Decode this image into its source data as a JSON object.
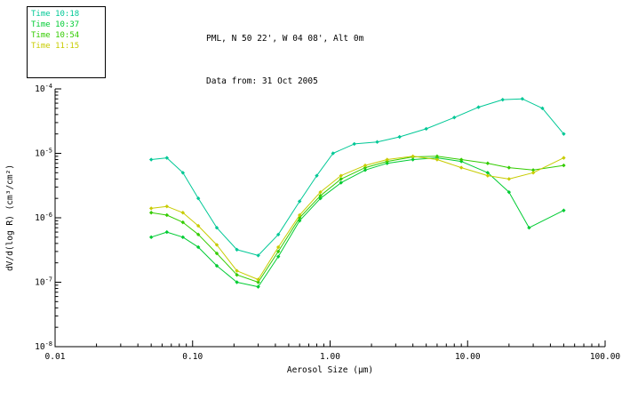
{
  "header": {
    "location_line": "PML, N 50 22', W 04 08', Alt 0m",
    "date_line": "Data from: 31 Oct 2005"
  },
  "legend": {
    "items": [
      {
        "label": "Time 10:18",
        "color": "#00C896"
      },
      {
        "label": "Time 10:37",
        "color": "#00CC33"
      },
      {
        "label": "Time 10:54",
        "color": "#33CC00"
      },
      {
        "label": "Time 11:15",
        "color": "#C8CC00"
      }
    ]
  },
  "chart_data": {
    "type": "line",
    "title": "",
    "x_axis": {
      "label": "Aerosol Size (μm)",
      "scale": "log",
      "range": [
        0.01,
        100
      ],
      "tick_values": [
        0.01,
        0.1,
        1,
        10,
        100
      ],
      "tick_labels": [
        "0.01",
        "0.10",
        "1.00",
        "10.00",
        "100.00"
      ]
    },
    "y_axis": {
      "label": "dV/d(log R) (cm³/cm²)",
      "scale": "log",
      "range": [
        1e-08,
        0.0001
      ],
      "tick_exponents": [
        -8,
        -7,
        -6,
        -5,
        -4
      ]
    },
    "grid": false,
    "legend_position": "top-left",
    "series": [
      {
        "name": "Time 10:18",
        "color": "#00C896",
        "points": [
          [
            0.05,
            8e-06
          ],
          [
            0.065,
            8.5e-06
          ],
          [
            0.085,
            5e-06
          ],
          [
            0.11,
            2e-06
          ],
          [
            0.15,
            7e-07
          ],
          [
            0.21,
            3.2e-07
          ],
          [
            0.3,
            2.6e-07
          ],
          [
            0.42,
            5.5e-07
          ],
          [
            0.6,
            1.8e-06
          ],
          [
            0.8,
            4.5e-06
          ],
          [
            1.05,
            1e-05
          ],
          [
            1.5,
            1.4e-05
          ],
          [
            2.2,
            1.5e-05
          ],
          [
            3.2,
            1.8e-05
          ],
          [
            5.0,
            2.4e-05
          ],
          [
            8.0,
            3.6e-05
          ],
          [
            12,
            5.2e-05
          ],
          [
            18,
            6.8e-05
          ],
          [
            25,
            7e-05
          ],
          [
            35,
            5e-05
          ],
          [
            50,
            2e-05
          ]
        ]
      },
      {
        "name": "Time 10:37",
        "color": "#00CC33",
        "points": [
          [
            0.05,
            5e-07
          ],
          [
            0.065,
            6e-07
          ],
          [
            0.085,
            5e-07
          ],
          [
            0.11,
            3.5e-07
          ],
          [
            0.15,
            1.8e-07
          ],
          [
            0.21,
            1e-07
          ],
          [
            0.3,
            8.5e-08
          ],
          [
            0.42,
            2.5e-07
          ],
          [
            0.6,
            9e-07
          ],
          [
            0.85,
            2e-06
          ],
          [
            1.2,
            3.5e-06
          ],
          [
            1.8,
            5.5e-06
          ],
          [
            2.6,
            7e-06
          ],
          [
            4.0,
            8e-06
          ],
          [
            6.0,
            8.5e-06
          ],
          [
            9.0,
            7.5e-06
          ],
          [
            14,
            5e-06
          ],
          [
            20,
            2.5e-06
          ],
          [
            28,
            7e-07
          ],
          [
            50,
            1.3e-06
          ]
        ]
      },
      {
        "name": "Time 10:54",
        "color": "#33CC00",
        "points": [
          [
            0.05,
            1.2e-06
          ],
          [
            0.065,
            1.1e-06
          ],
          [
            0.085,
            8.5e-07
          ],
          [
            0.11,
            5.5e-07
          ],
          [
            0.15,
            2.8e-07
          ],
          [
            0.21,
            1.3e-07
          ],
          [
            0.3,
            1e-07
          ],
          [
            0.42,
            3e-07
          ],
          [
            0.6,
            1e-06
          ],
          [
            0.85,
            2.2e-06
          ],
          [
            1.2,
            4e-06
          ],
          [
            1.8,
            6e-06
          ],
          [
            2.6,
            7.5e-06
          ],
          [
            4.0,
            8.8e-06
          ],
          [
            6.0,
            9e-06
          ],
          [
            9.0,
            8e-06
          ],
          [
            14,
            7e-06
          ],
          [
            20,
            6e-06
          ],
          [
            30,
            5.5e-06
          ],
          [
            50,
            6.5e-06
          ]
        ]
      },
      {
        "name": "Time 11:15",
        "color": "#C8CC00",
        "points": [
          [
            0.05,
            1.4e-06
          ],
          [
            0.065,
            1.5e-06
          ],
          [
            0.085,
            1.2e-06
          ],
          [
            0.11,
            7.5e-07
          ],
          [
            0.15,
            3.8e-07
          ],
          [
            0.21,
            1.5e-07
          ],
          [
            0.3,
            1.1e-07
          ],
          [
            0.42,
            3.5e-07
          ],
          [
            0.6,
            1.1e-06
          ],
          [
            0.85,
            2.5e-06
          ],
          [
            1.2,
            4.5e-06
          ],
          [
            1.8,
            6.5e-06
          ],
          [
            2.6,
            8e-06
          ],
          [
            4.0,
            9e-06
          ],
          [
            6.0,
            8e-06
          ],
          [
            9.0,
            6e-06
          ],
          [
            14,
            4.5e-06
          ],
          [
            20,
            4e-06
          ],
          [
            30,
            5e-06
          ],
          [
            50,
            8.5e-06
          ]
        ]
      }
    ]
  }
}
